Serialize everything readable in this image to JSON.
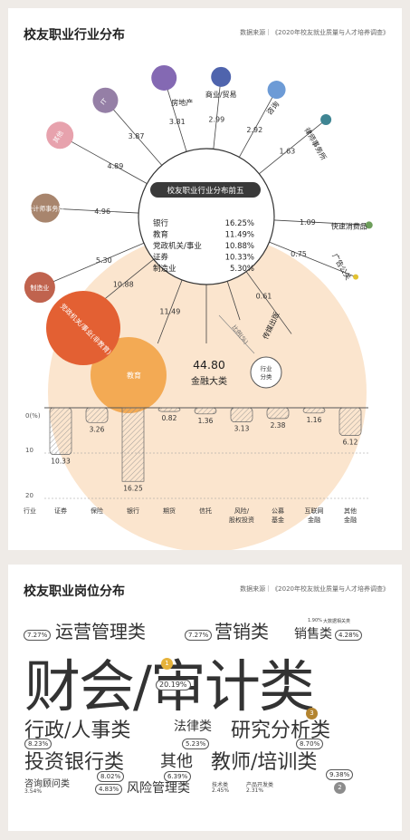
{
  "panel1": {
    "title": "校友职业行业分布",
    "source": "数据来源｜《2020年校友就业质量与人才培养调查》",
    "center_title": "校友职业行业分布前五",
    "top5": [
      {
        "name": "银行",
        "value": "16.25%"
      },
      {
        "name": "教育",
        "value": "11.49%"
      },
      {
        "name": "党政机关/事业",
        "value": "10.88%"
      },
      {
        "name": "证券",
        "value": "10.33%"
      },
      {
        "name": "制造业",
        "value": "5.30%"
      }
    ],
    "finance_value": "44.80",
    "finance_label": "金融大类",
    "ratio_label": "比例(%)",
    "industry_tag": "行业分类",
    "axis_labels": [
      "0(%)",
      "10",
      "20"
    ],
    "axis_row_label": "行业",
    "colors": {
      "finance": "#fbe3cb",
      "gov": "#e36033",
      "edu": "#f2a54a",
      "bank_hatch": "#888888"
    }
  },
  "chart_data": {
    "type": "bar",
    "title": "校友职业行业分布",
    "radial": {
      "items": [
        {
          "label": "其他",
          "value": "4.89",
          "color": "#e7a2ad"
        },
        {
          "label": "IT",
          "value": "3.87",
          "color": "#957fa6"
        },
        {
          "label": "房地产",
          "value": "3.81",
          "color": "#8469b3"
        },
        {
          "label": "商业/贸易",
          "value": "2.99",
          "color": "#4f64ad"
        },
        {
          "label": "咨询",
          "value": "2.92",
          "color": "#6d9bd6"
        },
        {
          "label": "律师事务所",
          "value": "1.63",
          "color": "#3f8593"
        },
        {
          "label": "快速消费品",
          "value": "1.09",
          "color": "#6d9e5b"
        },
        {
          "label": "广告公关",
          "value": "0.75",
          "color": "#e2c232"
        },
        {
          "label": "传媒出版",
          "value": "0.61",
          "color": "#ffffff"
        },
        {
          "label": "会计师事务所",
          "value": "4.96",
          "color": "#a8856d"
        },
        {
          "label": "制造业",
          "value": "5.30",
          "color": "#c0634e"
        },
        {
          "label": "党政机关/事业(非教育)",
          "value": "10.88",
          "color": "#e36033"
        },
        {
          "label": "教育",
          "value": "11.49",
          "color": "#f2a54a"
        }
      ]
    },
    "finance": {
      "categories": [
        "证券",
        "保险",
        "银行",
        "期货",
        "信托",
        "风险/股权投资",
        "公募基金",
        "互联网金融",
        "其他金融"
      ],
      "values": [
        10.33,
        3.26,
        16.25,
        0.82,
        1.36,
        3.13,
        2.38,
        1.16,
        6.12
      ],
      "value_labels": [
        "10.33",
        "3.26",
        "16.25",
        "0.82",
        "1.36",
        "3.13",
        "2.38",
        "1.16",
        "6.12"
      ],
      "ylim": [
        0,
        20
      ],
      "yticks": [
        0,
        10,
        20
      ]
    }
  },
  "panel2": {
    "title": "校友职业岗位分布",
    "source": "数据来源｜《2020年校友就业质量与人才培养调查》",
    "words": {
      "ops": "运营管理类",
      "ops_pct": "7.27%",
      "mkt": "营销类",
      "mkt_pct": "7.27%",
      "sales": "销售类",
      "sales_pct": "4.28%",
      "sales_note": "1.90%",
      "sales_note2": "大数据相关类",
      "fin": "财会/审计类",
      "fin_pct": "20.19%",
      "admin": "行政/人事类",
      "admin_pct": "8.23%",
      "law": "法律类",
      "law_pct": "5.23%",
      "research": "研究分析类",
      "research_pct": "8.70%",
      "ib": "投资银行类",
      "ib_pct": "8.02%",
      "other": "其他",
      "other_pct": "6.39%",
      "teacher": "教师/培训类",
      "teacher_pct": "9.38%",
      "consult": "咨询顾问类",
      "consult_pct": "3.54%",
      "risk": "风险管理类",
      "risk_pct": "4.83%",
      "tech": "技术类",
      "tech_pct": "2.45%",
      "product": "产品开发类",
      "product_pct": "2.31%",
      "rank1": "1",
      "rank2": "2",
      "rank3": "3"
    }
  }
}
